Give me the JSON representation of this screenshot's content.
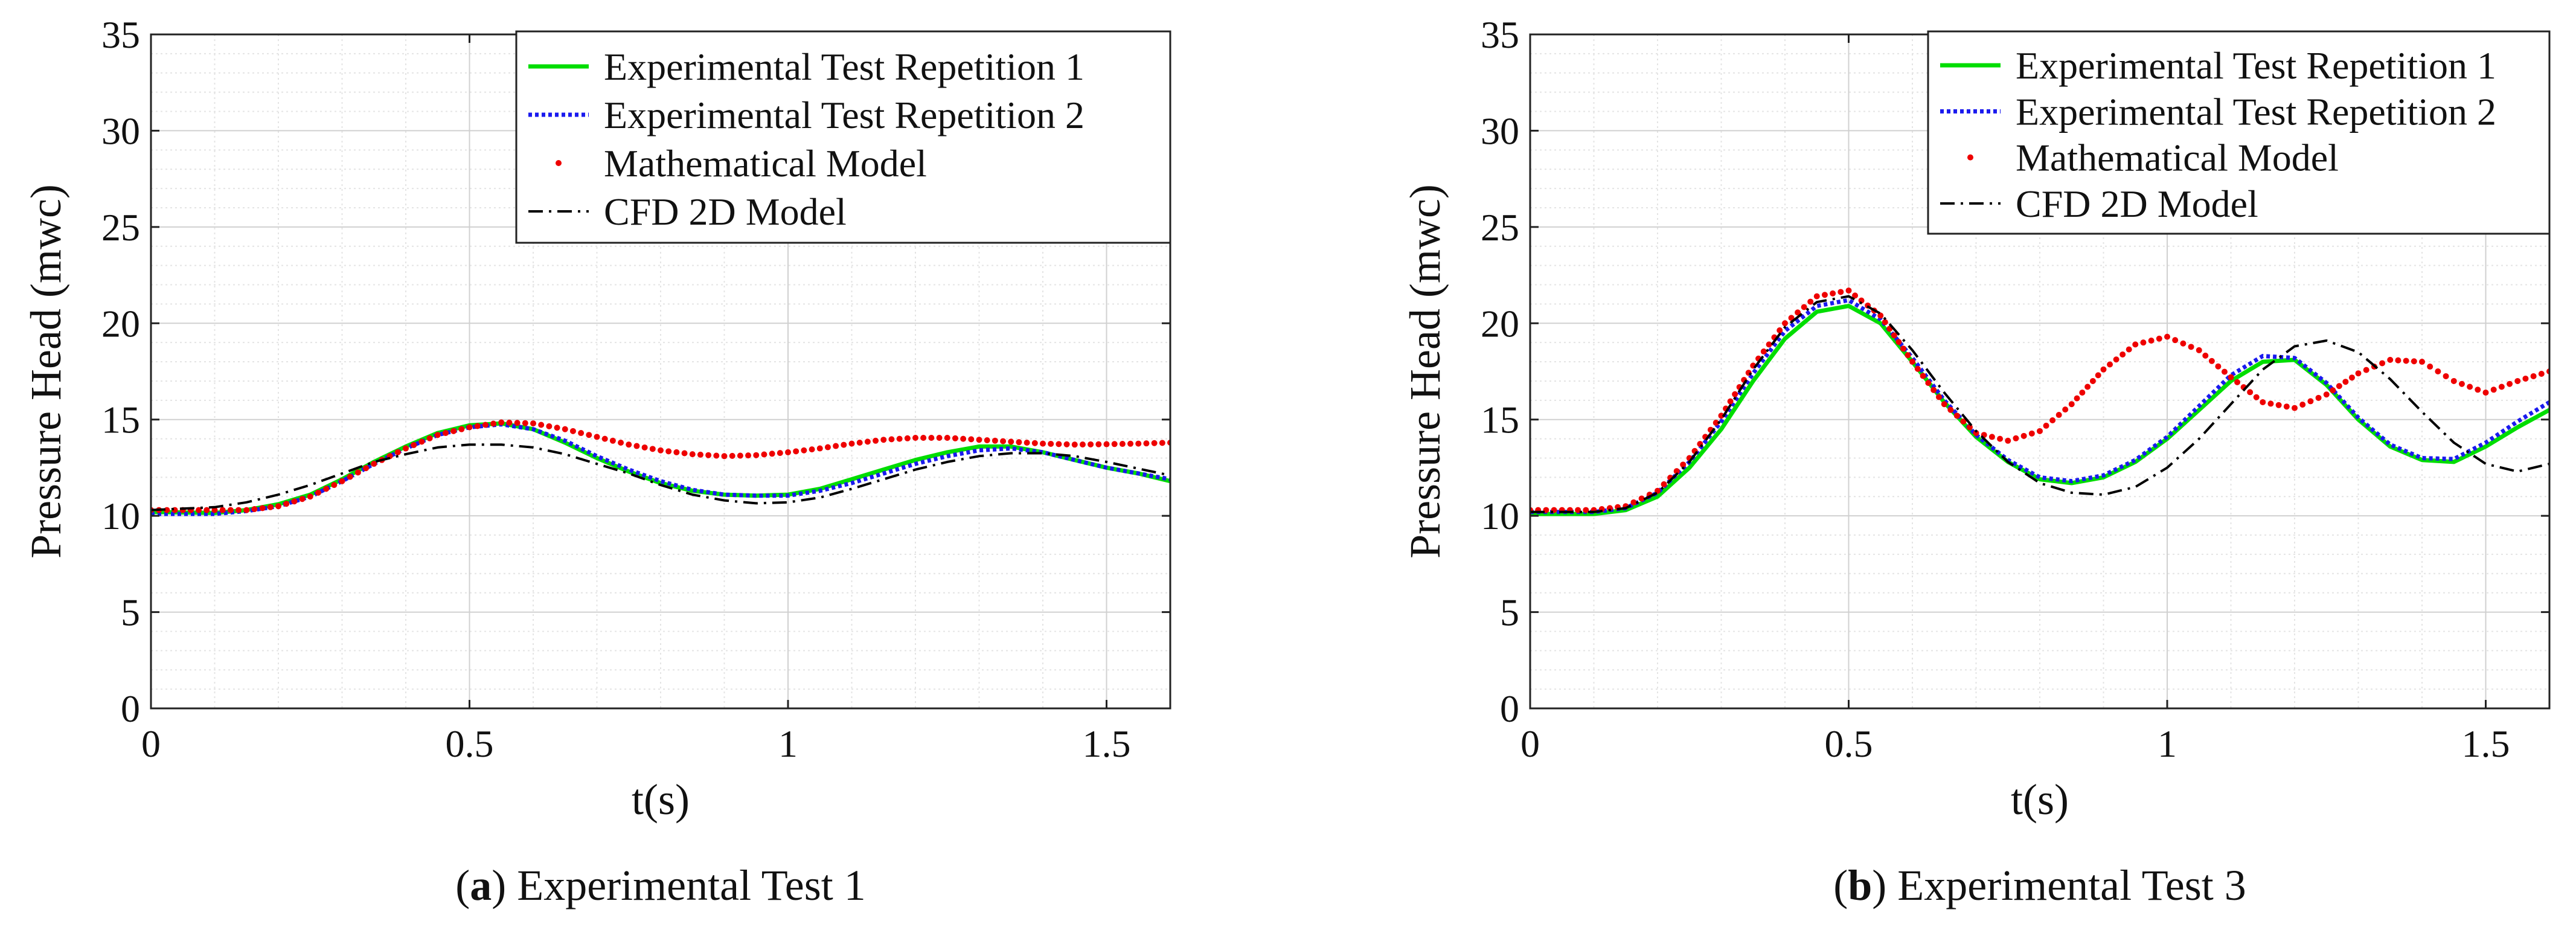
{
  "chart_data": [
    {
      "type": "line",
      "caption_letter": "a",
      "caption": "Experimental Test 1",
      "xlabel": "t(s)",
      "ylabel": "Pressure Head (mwc)",
      "xlim": [
        0,
        1.6
      ],
      "ylim": [
        0,
        35
      ],
      "xticks": [
        0,
        0.5,
        1,
        1.5
      ],
      "xtick_labels": [
        "0",
        "0.5",
        "1",
        "1.5"
      ],
      "yticks": [
        0,
        5,
        10,
        15,
        20,
        25,
        30,
        35
      ],
      "ytick_labels": [
        "0",
        "5",
        "10",
        "15",
        "20",
        "25",
        "30",
        "35"
      ],
      "grid": true,
      "legend_position": "top-right",
      "series": [
        {
          "name": "Experimental Test Repetition 1",
          "style": "solid",
          "color": "#00dd00",
          "x": [
            0,
            0.1,
            0.15,
            0.2,
            0.25,
            0.3,
            0.35,
            0.4,
            0.45,
            0.5,
            0.55,
            0.6,
            0.65,
            0.7,
            0.75,
            0.8,
            0.85,
            0.9,
            0.95,
            1.0,
            1.05,
            1.1,
            1.15,
            1.2,
            1.25,
            1.3,
            1.35,
            1.4,
            1.45,
            1.5,
            1.55,
            1.6
          ],
          "y": [
            10.2,
            10.15,
            10.3,
            10.6,
            11.1,
            11.9,
            12.8,
            13.6,
            14.3,
            14.7,
            14.8,
            14.5,
            13.8,
            13.0,
            12.3,
            11.7,
            11.3,
            11.1,
            11.05,
            11.1,
            11.4,
            11.9,
            12.4,
            12.9,
            13.3,
            13.6,
            13.6,
            13.3,
            12.9,
            12.5,
            12.2,
            11.8
          ]
        },
        {
          "name": "Experimental Test Repetition 2",
          "style": "dotted",
          "color": "#1a1aee",
          "x": [
            0,
            0.1,
            0.15,
            0.2,
            0.25,
            0.3,
            0.35,
            0.4,
            0.45,
            0.5,
            0.55,
            0.6,
            0.65,
            0.7,
            0.75,
            0.8,
            0.85,
            0.9,
            0.95,
            1.0,
            1.05,
            1.1,
            1.15,
            1.2,
            1.25,
            1.3,
            1.35,
            1.4,
            1.45,
            1.5,
            1.55,
            1.6
          ],
          "y": [
            10.1,
            10.1,
            10.25,
            10.5,
            11.0,
            11.8,
            12.7,
            13.5,
            14.2,
            14.6,
            14.75,
            14.5,
            13.9,
            13.1,
            12.4,
            11.8,
            11.35,
            11.1,
            11.05,
            11.05,
            11.3,
            11.7,
            12.2,
            12.7,
            13.1,
            13.4,
            13.5,
            13.3,
            12.9,
            12.5,
            12.2,
            11.9
          ]
        },
        {
          "name": "Mathematical Model",
          "style": "markers",
          "color": "#ee0000",
          "x": [
            0,
            0.1,
            0.15,
            0.2,
            0.25,
            0.3,
            0.35,
            0.4,
            0.45,
            0.5,
            0.55,
            0.6,
            0.65,
            0.7,
            0.75,
            0.8,
            0.85,
            0.9,
            0.95,
            1.0,
            1.05,
            1.1,
            1.15,
            1.2,
            1.25,
            1.3,
            1.35,
            1.4,
            1.45,
            1.5,
            1.55,
            1.6
          ],
          "y": [
            10.3,
            10.3,
            10.3,
            10.5,
            11.0,
            11.8,
            12.7,
            13.5,
            14.2,
            14.6,
            14.85,
            14.8,
            14.5,
            14.1,
            13.7,
            13.4,
            13.2,
            13.1,
            13.15,
            13.3,
            13.5,
            13.75,
            13.95,
            14.05,
            14.05,
            13.95,
            13.85,
            13.75,
            13.7,
            13.72,
            13.75,
            13.8
          ]
        },
        {
          "name": "CFD 2D Model",
          "style": "dashdot",
          "color": "#000000",
          "x": [
            0,
            0.1,
            0.15,
            0.2,
            0.25,
            0.3,
            0.35,
            0.4,
            0.45,
            0.5,
            0.55,
            0.6,
            0.65,
            0.7,
            0.75,
            0.8,
            0.85,
            0.9,
            0.95,
            1.0,
            1.05,
            1.1,
            1.15,
            1.2,
            1.25,
            1.3,
            1.35,
            1.4,
            1.45,
            1.5,
            1.55,
            1.6
          ],
          "y": [
            10.3,
            10.45,
            10.7,
            11.1,
            11.6,
            12.2,
            12.8,
            13.2,
            13.55,
            13.7,
            13.7,
            13.55,
            13.2,
            12.7,
            12.2,
            11.6,
            11.1,
            10.8,
            10.65,
            10.7,
            10.95,
            11.4,
            11.9,
            12.4,
            12.8,
            13.1,
            13.25,
            13.25,
            13.1,
            12.8,
            12.45,
            12.1
          ]
        }
      ]
    },
    {
      "type": "line",
      "caption_letter": "b",
      "caption": "Experimental Test 3",
      "xlabel": "t(s)",
      "ylabel": "Pressure Head (mwc)",
      "xlim": [
        0,
        1.6
      ],
      "ylim": [
        0,
        35
      ],
      "xticks": [
        0,
        0.5,
        1,
        1.5
      ],
      "xtick_labels": [
        "0",
        "0.5",
        "1",
        "1.5"
      ],
      "yticks": [
        0,
        5,
        10,
        15,
        20,
        25,
        30,
        35
      ],
      "ytick_labels": [
        "0",
        "5",
        "10",
        "15",
        "20",
        "25",
        "30",
        "35"
      ],
      "grid": true,
      "legend_position": "top-right",
      "series": [
        {
          "name": "Experimental Test Repetition 1",
          "style": "solid",
          "color": "#00dd00",
          "x": [
            0,
            0.1,
            0.15,
            0.2,
            0.25,
            0.3,
            0.35,
            0.4,
            0.45,
            0.5,
            0.55,
            0.6,
            0.65,
            0.7,
            0.75,
            0.8,
            0.85,
            0.9,
            0.95,
            1.0,
            1.05,
            1.1,
            1.15,
            1.2,
            1.25,
            1.3,
            1.35,
            1.4,
            1.45,
            1.5,
            1.55,
            1.6
          ],
          "y": [
            10.1,
            10.1,
            10.3,
            11.0,
            12.5,
            14.5,
            17.0,
            19.2,
            20.6,
            20.9,
            20.0,
            18.0,
            15.9,
            14.1,
            12.8,
            11.9,
            11.7,
            12.0,
            12.8,
            14.0,
            15.5,
            17.0,
            18.0,
            18.1,
            16.8,
            15.0,
            13.6,
            12.9,
            12.8,
            13.6,
            14.6,
            15.5
          ]
        },
        {
          "name": "Experimental Test Repetition 2",
          "style": "dotted",
          "color": "#1a1aee",
          "x": [
            0,
            0.1,
            0.15,
            0.2,
            0.25,
            0.3,
            0.35,
            0.4,
            0.45,
            0.5,
            0.55,
            0.6,
            0.65,
            0.7,
            0.75,
            0.8,
            0.85,
            0.9,
            0.95,
            1.0,
            1.05,
            1.1,
            1.15,
            1.2,
            1.25,
            1.3,
            1.35,
            1.4,
            1.45,
            1.5,
            1.55,
            1.6
          ],
          "y": [
            10.2,
            10.2,
            10.4,
            11.2,
            12.8,
            14.9,
            17.4,
            19.6,
            20.9,
            21.2,
            20.2,
            18.2,
            16.0,
            14.2,
            12.9,
            12.0,
            11.8,
            12.1,
            12.9,
            14.1,
            15.7,
            17.3,
            18.3,
            18.2,
            16.9,
            15.1,
            13.7,
            13.0,
            12.95,
            13.8,
            14.9,
            15.9
          ]
        },
        {
          "name": "Mathematical Model",
          "style": "markers",
          "color": "#ee0000",
          "x": [
            0,
            0.1,
            0.15,
            0.2,
            0.25,
            0.3,
            0.35,
            0.4,
            0.45,
            0.5,
            0.55,
            0.6,
            0.65,
            0.7,
            0.75,
            0.8,
            0.85,
            0.9,
            0.95,
            1.0,
            1.05,
            1.1,
            1.15,
            1.2,
            1.25,
            1.3,
            1.35,
            1.4,
            1.45,
            1.5,
            1.55,
            1.6
          ],
          "y": [
            10.3,
            10.3,
            10.5,
            11.3,
            13.0,
            15.2,
            17.8,
            20.0,
            21.4,
            21.7,
            20.4,
            18.0,
            15.8,
            14.3,
            13.9,
            14.4,
            15.8,
            17.6,
            18.9,
            19.3,
            18.6,
            17.2,
            15.9,
            15.6,
            16.3,
            17.4,
            18.1,
            18.0,
            17.0,
            16.4,
            17.0,
            17.5
          ]
        },
        {
          "name": "CFD 2D Model",
          "style": "dashdot",
          "color": "#000000",
          "x": [
            0,
            0.1,
            0.15,
            0.2,
            0.25,
            0.3,
            0.35,
            0.4,
            0.45,
            0.5,
            0.55,
            0.6,
            0.65,
            0.7,
            0.75,
            0.8,
            0.85,
            0.9,
            0.95,
            1.0,
            1.05,
            1.1,
            1.15,
            1.2,
            1.25,
            1.3,
            1.35,
            1.4,
            1.45,
            1.5,
            1.55,
            1.6
          ],
          "y": [
            10.2,
            10.2,
            10.4,
            11.2,
            12.8,
            15.0,
            17.6,
            19.8,
            21.1,
            21.4,
            20.5,
            18.6,
            16.4,
            14.4,
            12.8,
            11.7,
            11.2,
            11.1,
            11.5,
            12.5,
            14.0,
            15.8,
            17.6,
            18.8,
            19.1,
            18.5,
            17.1,
            15.4,
            13.8,
            12.7,
            12.3,
            12.7
          ]
        }
      ]
    }
  ]
}
